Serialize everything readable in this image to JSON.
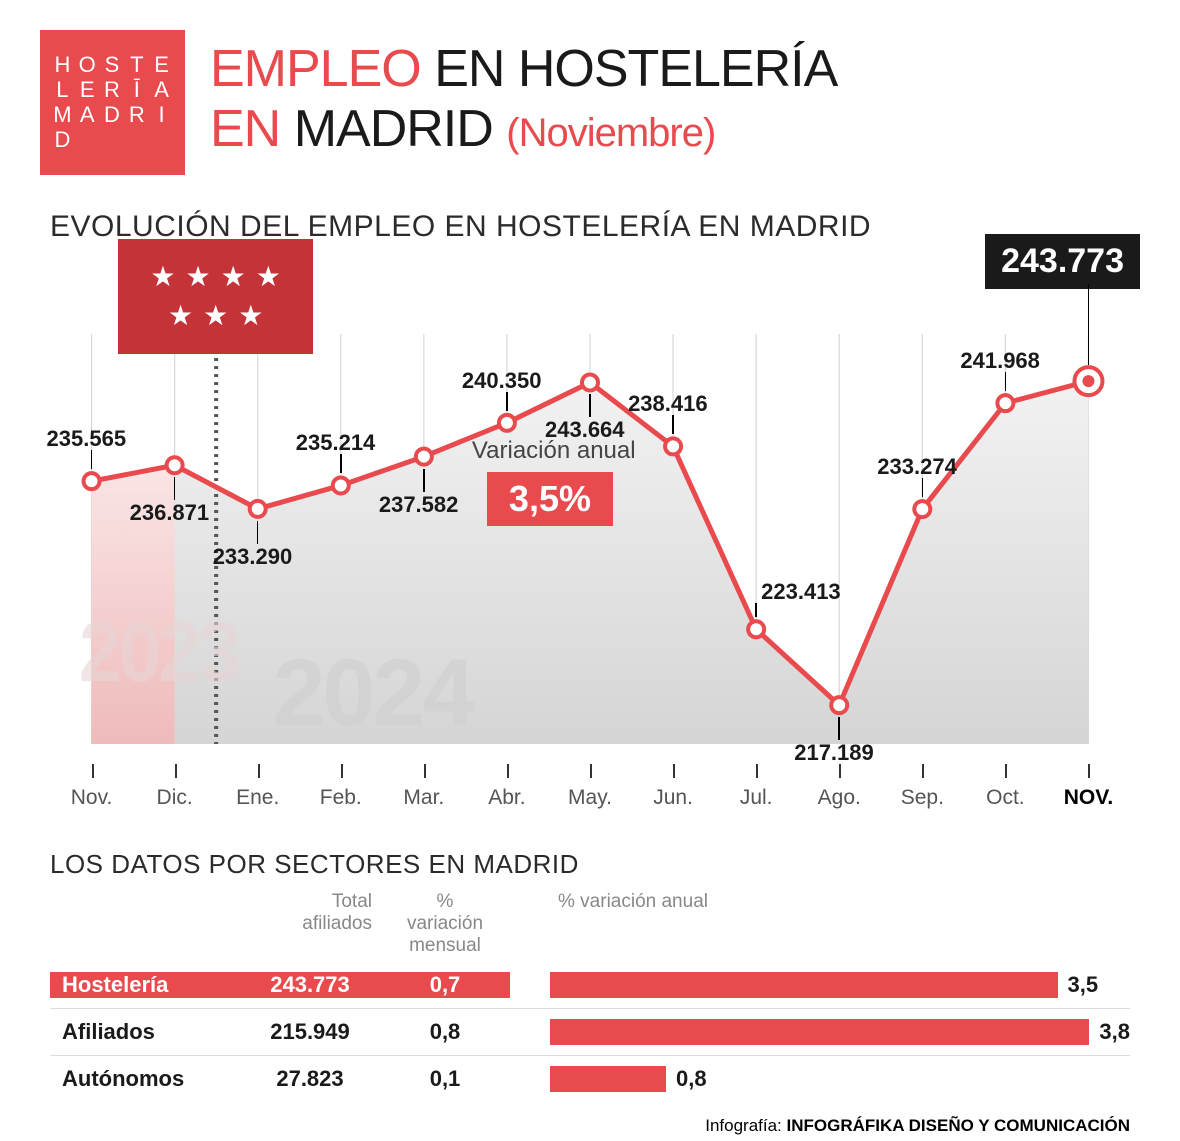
{
  "colors": {
    "red": "#e84a4e",
    "darkred": "#c43338",
    "black": "#1a1a1a",
    "grid": "#d8d8d8",
    "area_grey_light": "#f2f2f2",
    "area_grey_dark": "#d5d5d5",
    "area_pink_light": "#fde4e4",
    "area_pink_dark": "#f3b6b6"
  },
  "logo_text": "HOSTELERĪAMADRID",
  "header": {
    "word1": "EMPLEO",
    "word2": "EN HOSTELERÍA",
    "word3": "EN",
    "word4": "MADRID",
    "month": "(Noviembre)"
  },
  "chart": {
    "subtitle": "EVOLUCIÓN DEL EMPLEO EN HOSTELERÍA EN MADRID",
    "ylim": [
      214000,
      246000
    ],
    "variation_label": "Variación anual",
    "variation_value": "3,5%",
    "highlight_value": "243.773",
    "year_2023": "2023",
    "year_2024": "2024",
    "points": [
      {
        "month": "Nov.",
        "value": 235565,
        "label": "235.565",
        "label_pos": "top",
        "bold": false
      },
      {
        "month": "Dic.",
        "value": 236871,
        "label": "236.871",
        "label_pos": "bottom",
        "bold": false
      },
      {
        "month": "Ene.",
        "value": 233290,
        "label": "233.290",
        "label_pos": "bottom",
        "bold": false
      },
      {
        "month": "Feb.",
        "value": 235214,
        "label": "235.214",
        "label_pos": "top",
        "bold": false
      },
      {
        "month": "Mar.",
        "value": 237582,
        "label": "237.582",
        "label_pos": "bottom",
        "bold": false
      },
      {
        "month": "Abr.",
        "value": 240350,
        "label": "240.350",
        "label_pos": "top",
        "bold": false
      },
      {
        "month": "May.",
        "value": 243664,
        "label": "243.664",
        "label_pos": "bottom",
        "bold": false
      },
      {
        "month": "Jun.",
        "value": 238416,
        "label": "238.416",
        "label_pos": "top",
        "bold": false
      },
      {
        "month": "Jul.",
        "value": 223413,
        "label": "223.413",
        "label_pos": "topright",
        "bold": false
      },
      {
        "month": "Ago.",
        "value": 217189,
        "label": "217.189",
        "label_pos": "bottom",
        "bold": false
      },
      {
        "month": "Sep.",
        "value": 233274,
        "label": "233.274",
        "label_pos": "top",
        "bold": false
      },
      {
        "month": "Oct.",
        "value": 241968,
        "label": "241.968",
        "label_pos": "top",
        "bold": false
      },
      {
        "month": "NOV.",
        "value": 243773,
        "label": "243.773",
        "label_pos": "highlight",
        "bold": true
      }
    ]
  },
  "sectors": {
    "title": "LOS DATOS POR SECTORES EN MADRID",
    "head_total": "Total afiliados",
    "head_mensual": "% variación mensual",
    "head_anual": "% variación anual",
    "bar_max": 4.0,
    "rows": [
      {
        "name": "Hostelería",
        "total": "243.773",
        "mensual": "0,7",
        "anual": 3.5,
        "anual_label": "3,5",
        "highlight": true
      },
      {
        "name": "Afiliados",
        "total": "215.949",
        "mensual": "0,8",
        "anual": 3.8,
        "anual_label": "3,8",
        "highlight": false
      },
      {
        "name": "Autónomos",
        "total": "27.823",
        "mensual": "0,1",
        "anual": 0.8,
        "anual_label": "0,8",
        "highlight": false
      }
    ]
  },
  "credit": {
    "prefix": "Infografía: ",
    "name": "INFOGRÁFIKA DISEÑO Y COMUNICACIÓN"
  }
}
